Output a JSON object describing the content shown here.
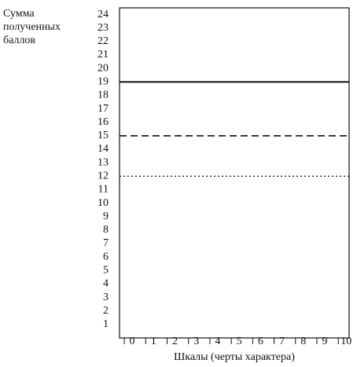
{
  "chart_data": {
    "type": "reference-lines",
    "ylabel": [
      "Сумма",
      "полученных",
      "баллов"
    ],
    "xlabel": "Шкалы (черты характера)",
    "xlim": [
      -0.59,
      10.14
    ],
    "xticks": [
      0,
      1,
      2,
      3,
      4,
      5,
      6,
      7,
      8,
      9,
      10
    ],
    "ylim": [
      0,
      24.5
    ],
    "yticks": [
      1,
      2,
      3,
      4,
      5,
      6,
      7,
      8,
      9,
      10,
      11,
      12,
      13,
      14,
      15,
      16,
      17,
      18,
      19,
      20,
      21,
      22,
      23,
      24
    ],
    "lines": [
      {
        "value": 19,
        "dash": "solid"
      },
      {
        "value": 15,
        "dash": "dashed"
      },
      {
        "value": 12,
        "dash": "dotted"
      }
    ],
    "color": "#111111"
  }
}
